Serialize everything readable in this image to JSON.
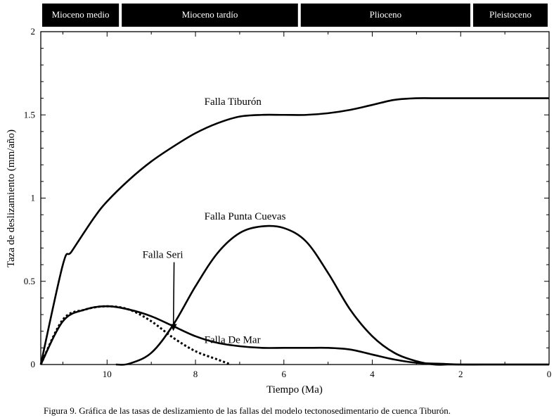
{
  "chart_data": {
    "type": "line",
    "xlabel": "Tiempo (Ma)",
    "ylabel": "Taza de deslizamiento (mm/año)",
    "xlim": [
      11.5,
      0
    ],
    "ylim": [
      0,
      2
    ],
    "x_reversed": true,
    "xticks": [
      10,
      8,
      6,
      4,
      2,
      0
    ],
    "xtick_labels": [
      "10",
      "8",
      "6",
      "4",
      "2",
      "0"
    ],
    "yticks": [
      0,
      0.5,
      1,
      1.5,
      2
    ],
    "ytick_labels": [
      "0",
      "0.5",
      "1",
      "1.5",
      "2"
    ],
    "grid": false,
    "epochs": [
      {
        "label": "Mioceno medio",
        "start": 11.5,
        "end": 9.7
      },
      {
        "label": "Mioceno tardío",
        "start": 9.7,
        "end": 5.65
      },
      {
        "label": "Plioceno",
        "start": 5.65,
        "end": 1.75
      },
      {
        "label": "Pleistoceno",
        "start": 1.75,
        "end": 0
      }
    ],
    "series": [
      {
        "name": "Falla Tiburón",
        "style": "solid",
        "x": [
          11.5,
          11.0,
          10.8,
          10.3,
          10.0,
          9.5,
          9.0,
          8.5,
          8.0,
          7.5,
          7.0,
          6.5,
          6.0,
          5.5,
          5.0,
          4.5,
          4.0,
          3.5,
          3.0,
          2.5,
          2.0,
          1.5,
          1.0,
          0.5,
          0.0
        ],
        "y": [
          0.0,
          0.6,
          0.68,
          0.88,
          0.98,
          1.11,
          1.22,
          1.31,
          1.39,
          1.45,
          1.49,
          1.5,
          1.5,
          1.5,
          1.51,
          1.53,
          1.56,
          1.59,
          1.6,
          1.6,
          1.6,
          1.6,
          1.6,
          1.6,
          1.6
        ]
      },
      {
        "name": "Falla Punta Cuevas",
        "style": "solid",
        "x": [
          9.8,
          9.5,
          9.0,
          8.5,
          8.0,
          7.5,
          7.0,
          6.5,
          6.0,
          5.5,
          5.0,
          4.5,
          4.0,
          3.5,
          3.0,
          2.6,
          2.3,
          2.0,
          1.5,
          1.0,
          0.5,
          0.0
        ],
        "y": [
          0.0,
          0.005,
          0.07,
          0.24,
          0.47,
          0.67,
          0.79,
          0.83,
          0.82,
          0.74,
          0.55,
          0.33,
          0.17,
          0.07,
          0.02,
          0.0,
          0.0,
          0.0,
          0.0,
          0.0,
          0.0,
          0.0
        ]
      },
      {
        "name": "Falla De Mar",
        "style": "solid",
        "x": [
          11.5,
          11.0,
          10.5,
          10.0,
          9.5,
          9.0,
          8.5,
          8.0,
          7.5,
          7.0,
          6.5,
          6.0,
          5.5,
          5.0,
          4.5,
          4.0,
          3.5,
          3.0,
          2.5,
          2.0,
          1.5,
          1.0,
          0.5,
          0.0
        ],
        "y": [
          0.0,
          0.26,
          0.33,
          0.35,
          0.33,
          0.29,
          0.23,
          0.17,
          0.13,
          0.11,
          0.1,
          0.1,
          0.1,
          0.1,
          0.09,
          0.06,
          0.03,
          0.01,
          0.005,
          0.0,
          0.0,
          0.0,
          0.0,
          0.0
        ]
      },
      {
        "name": "Falla Seri",
        "style": "dotted",
        "x": [
          11.5,
          11.0,
          10.5,
          10.0,
          9.5,
          9.0,
          8.5,
          8.0,
          7.5,
          7.2
        ],
        "y": [
          0.0,
          0.27,
          0.33,
          0.35,
          0.33,
          0.26,
          0.16,
          0.08,
          0.03,
          0.0
        ]
      }
    ],
    "annotations": [
      {
        "text": "Falla Tiburón",
        "x": 7.8,
        "y": 1.56
      },
      {
        "text": "Falla Punta Cuevas",
        "x": 7.8,
        "y": 0.87
      },
      {
        "text": "Falla De Mar",
        "x": 7.8,
        "y": 0.13
      },
      {
        "text": "Falla Seri",
        "x": 9.2,
        "y": 0.64,
        "arrow_to": [
          8.5,
          0.21
        ]
      }
    ],
    "caption": "Figura 9. Gráfica de las tasas de deslizamiento de las fallas del modelo tectonosedimentario de cuenca Tiburón."
  }
}
